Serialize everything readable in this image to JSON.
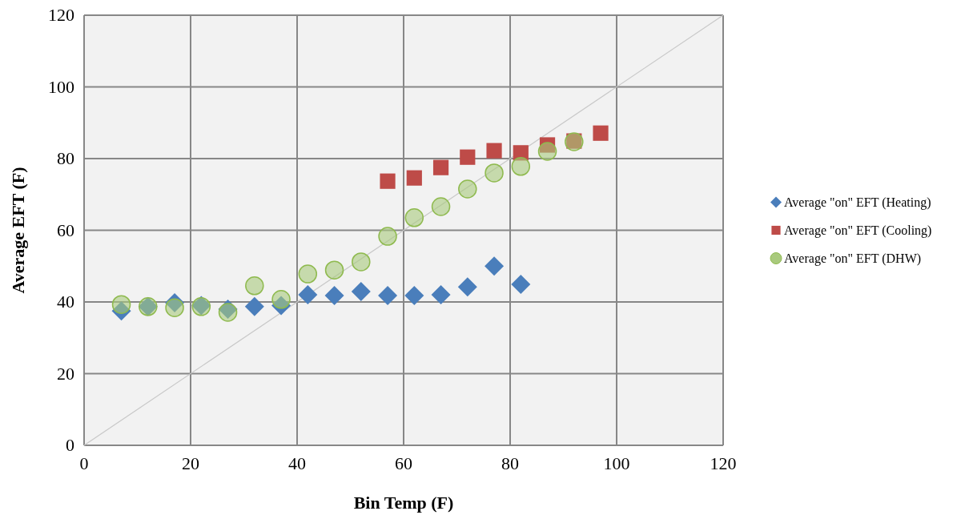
{
  "chart_data": {
    "type": "scatter",
    "xlabel": "Bin Temp (F)",
    "ylabel": "Average EFT (F)",
    "xlim": [
      0,
      120
    ],
    "ylim": [
      0,
      120
    ],
    "xticks": [
      0,
      20,
      40,
      60,
      80,
      100,
      120
    ],
    "yticks": [
      0,
      20,
      40,
      60,
      80,
      100,
      120
    ],
    "grid": true,
    "legend": "right",
    "series": [
      {
        "type": "line",
        "color": "#c8c8c8",
        "x": [
          0,
          120
        ],
        "values": [
          0,
          120
        ],
        "marker": "none"
      },
      {
        "name": "Average \"on\" EFT (Heating)",
        "color": "#4a7ebb",
        "marker": "diamond",
        "x": [
          7,
          12,
          17,
          22,
          27,
          32,
          37,
          42,
          47,
          52,
          57,
          62,
          67,
          72,
          77,
          82
        ],
        "values": [
          37.5,
          38.7,
          39.8,
          39,
          38,
          38.7,
          39,
          42,
          41.8,
          42.9,
          41.8,
          41.8,
          42,
          44.2,
          50,
          44.9
        ]
      },
      {
        "name": "Average \"on\" EFT (Cooling)",
        "color": "#be4b48",
        "marker": "square",
        "x": [
          57,
          62,
          67,
          72,
          77,
          82,
          87,
          92,
          97
        ],
        "values": [
          73.7,
          74.6,
          77.5,
          80.4,
          82.2,
          81.6,
          83.8,
          84.9,
          87.1
        ]
      },
      {
        "name": "Average \"on\" EFT (DHW)",
        "color": "#a9ca7d",
        "marker": "circle",
        "x": [
          7,
          12,
          17,
          22,
          27,
          32,
          37,
          42,
          47,
          52,
          57,
          62,
          67,
          72,
          77,
          82,
          87,
          92
        ],
        "values": [
          39.3,
          38.7,
          38.4,
          38.7,
          37.1,
          44.5,
          40.7,
          47.8,
          48.9,
          51.2,
          58.3,
          63.5,
          66.6,
          71.5,
          76,
          77.8,
          82,
          84.7
        ]
      }
    ]
  }
}
